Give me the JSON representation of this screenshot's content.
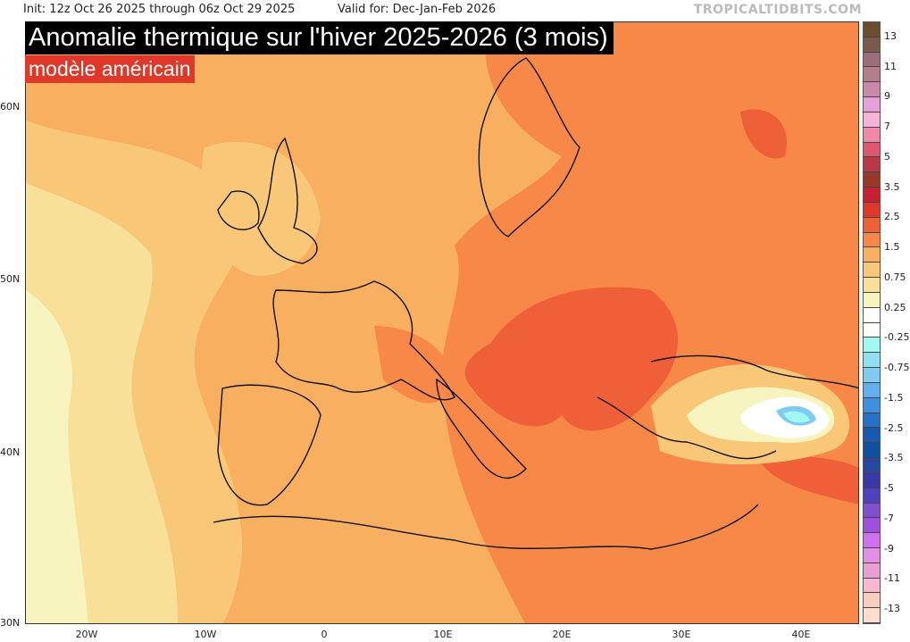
{
  "header": {
    "init": "Init: 12z Oct 26 2025 through 06z Oct 29 2025",
    "valid": "Valid for: Dec-Jan-Feb 2026",
    "brand": "TROPICALTIDBITS.COM"
  },
  "title": "Anomalie thermique sur l'hiver 2025-2026 (3 mois)",
  "subtitle": "modèle américain",
  "map": {
    "lat_labels": [
      "60N",
      "50N",
      "40N",
      "30N"
    ],
    "lon_labels": [
      "20W",
      "10W",
      "0",
      "10E",
      "20E",
      "30E",
      "40E"
    ]
  },
  "colorbar": {
    "colors": [
      "#6b4e31",
      "#7a5a48",
      "#9a6e7a",
      "#b47e88",
      "#c88aa8",
      "#e8a0d8",
      "#f8b4d8",
      "#f088a8",
      "#e05870",
      "#b83848",
      "#983828",
      "#c82030",
      "#e03828",
      "#f06038",
      "#f88848",
      "#f8b060",
      "#f8c878",
      "#f8e098",
      "#f8f4c0",
      "#ffffff",
      "#ffffff",
      "#a0f8f0",
      "#90e0f0",
      "#80ccf0",
      "#60b0f0",
      "#4090e0",
      "#2870c8",
      "#1858b0",
      "#1050a0",
      "#2848a0",
      "#3838a8",
      "#5040c0",
      "#8050d0",
      "#a050e0",
      "#d070f0",
      "#e090e0",
      "#e8a0d0",
      "#f8b8d0",
      "#f8d0c0",
      "#ffdccc"
    ],
    "labels": [
      "13",
      "11",
      "9",
      "7",
      "5",
      "3.5",
      "2.5",
      "1.5",
      "0.75",
      "0.25",
      "-0.25",
      "-0.75",
      "-1.5",
      "-2.5",
      "-3.5",
      "-5",
      "-7",
      "-9",
      "-11",
      "-13"
    ]
  }
}
